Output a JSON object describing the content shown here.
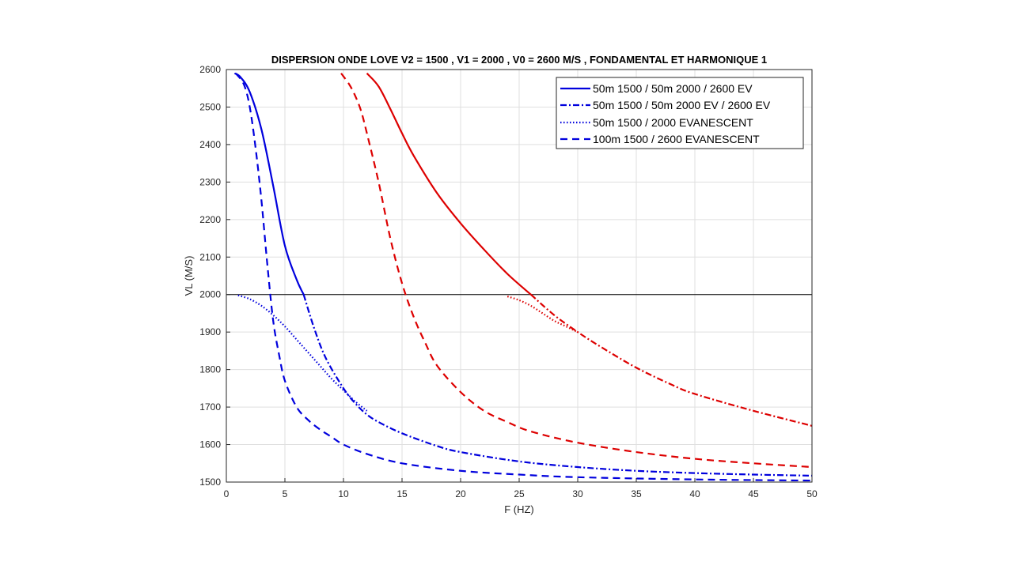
{
  "chart_data": {
    "type": "line",
    "title": "DISPERSION ONDE LOVE V2 = 1500 , V1 = 2000 , V0 = 2600 M/S , FONDAMENTAL ET HARMONIQUE 1",
    "xlabel": "F (HZ)",
    "ylabel": "VL (M/S)",
    "xlim": [
      0,
      50
    ],
    "ylim": [
      1500,
      2600
    ],
    "xticks": [
      0,
      5,
      10,
      15,
      20,
      25,
      30,
      35,
      40,
      45,
      50
    ],
    "yticks": [
      1500,
      1600,
      1700,
      1800,
      1900,
      2000,
      2100,
      2200,
      2300,
      2400,
      2500,
      2600
    ],
    "grid": true,
    "legend_position": "top-right",
    "reference_line": {
      "y": 2000,
      "color": "#000000"
    },
    "legend": [
      {
        "label": "50m 1500 / 50m 2000 / 2600 EV",
        "style": "solid",
        "color": "#0000dd"
      },
      {
        "label": "50m 1500 / 50m 2000  EV / 2600 EV",
        "style": "dashdot",
        "color": "#0000dd"
      },
      {
        "label": "50m 1500 / 2000 EVANESCENT",
        "style": "dotted",
        "color": "#0000dd"
      },
      {
        "label": "100m 1500 / 2600 EVANESCENT",
        "style": "dashed",
        "color": "#0000dd"
      }
    ],
    "series": [
      {
        "legend_index": 0,
        "style": "solid",
        "color": "#0000dd",
        "x": [
          0.7,
          1.2,
          2.0,
          3.0,
          4.0,
          5.0,
          6.0,
          6.6
        ],
        "y": [
          2590,
          2580,
          2540,
          2440,
          2290,
          2130,
          2040,
          2000
        ]
      },
      {
        "style": "dashdot",
        "color": "#0000dd",
        "x": [
          6.6,
          7.5,
          8.5,
          10,
          11,
          12,
          13,
          15,
          18,
          20,
          25,
          30,
          35,
          40,
          45,
          50
        ],
        "y": [
          2000,
          1910,
          1830,
          1750,
          1710,
          1680,
          1660,
          1630,
          1596,
          1580,
          1555,
          1540,
          1530,
          1524,
          1520,
          1517
        ]
      },
      {
        "style": "dotted",
        "color": "#0000dd",
        "x": [
          1.0,
          2.0,
          3.0,
          4.0,
          5.0,
          6.0,
          7.0,
          8.0,
          9.0,
          10,
          11,
          12
        ],
        "y": [
          1998,
          1988,
          1970,
          1945,
          1915,
          1880,
          1845,
          1810,
          1775,
          1745,
          1715,
          1690
        ]
      },
      {
        "legend_index": 3,
        "style": "dashed",
        "color": "#0000dd",
        "x": [
          0.8,
          1.5,
          2.0,
          2.5,
          3.0,
          3.5,
          4.0,
          4.5,
          5.0,
          6.0,
          7.0,
          8.0,
          9.0,
          10,
          12,
          15,
          20,
          25,
          30,
          40,
          50
        ],
        "y": [
          2590,
          2560,
          2500,
          2390,
          2250,
          2080,
          1930,
          1840,
          1770,
          1700,
          1665,
          1640,
          1620,
          1600,
          1575,
          1550,
          1530,
          1520,
          1513,
          1507,
          1504
        ]
      },
      {
        "style": "solid",
        "color": "#dd0000",
        "x": [
          12,
          13,
          14,
          15,
          16,
          18,
          20,
          22,
          24,
          26
        ],
        "y": [
          2590,
          2555,
          2495,
          2430,
          2370,
          2270,
          2190,
          2120,
          2055,
          2000
        ]
      },
      {
        "style": "dashdot",
        "color": "#dd0000",
        "x": [
          26,
          28,
          30,
          32,
          35,
          38,
          40,
          45,
          50
        ],
        "y": [
          2000,
          1945,
          1900,
          1860,
          1805,
          1760,
          1735,
          1690,
          1650
        ]
      },
      {
        "style": "dotted",
        "color": "#dd0000",
        "x": [
          24,
          25,
          26,
          27,
          28,
          29,
          30
        ],
        "y": [
          1995,
          1985,
          1970,
          1950,
          1930,
          1915,
          1900
        ]
      },
      {
        "style": "dashed",
        "color": "#dd0000",
        "x": [
          9.8,
          10.5,
          11.0,
          11.5,
          12,
          13,
          14,
          15,
          16,
          17,
          18,
          20,
          22,
          24,
          26,
          30,
          35,
          40,
          45,
          50
        ],
        "y": [
          2590,
          2560,
          2530,
          2490,
          2430,
          2300,
          2150,
          2030,
          1940,
          1870,
          1810,
          1740,
          1690,
          1660,
          1635,
          1605,
          1580,
          1562,
          1550,
          1540
        ]
      }
    ]
  }
}
